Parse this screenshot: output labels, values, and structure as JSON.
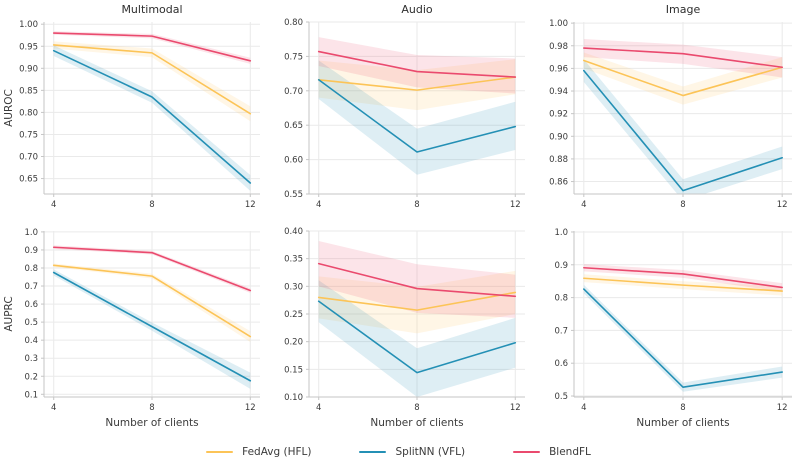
{
  "colors": {
    "fedavg": "#FCC457",
    "splitnn": "#2490B5",
    "blendfl": "#EA4A6E",
    "grid": "#EAEAEA",
    "spine": "#C6C6C6",
    "tick_text": "#3A3A3A",
    "title_text": "#2E2E2E",
    "band_opacity": 0.15
  },
  "legend": {
    "items": [
      {
        "label": "FedAvg (HFL)",
        "color_key": "fedavg"
      },
      {
        "label": "SplitNN (VFL)",
        "color_key": "splitnn"
      },
      {
        "label": "BlendFL",
        "color_key": "blendfl"
      }
    ]
  },
  "chart_data": [
    {
      "id": "multimodal-auroc",
      "type": "line",
      "title": "Multimodal",
      "ylabel": "AUROC",
      "xlabel": "",
      "x": [
        4,
        8,
        12
      ],
      "xtick_labels": [
        "4",
        "8",
        "12"
      ],
      "ylim": [
        0.615,
        1.005
      ],
      "ytick_labels": [
        "0.65",
        "0.70",
        "0.75",
        "0.80",
        "0.85",
        "0.90",
        "0.95",
        "1.00"
      ],
      "series": [
        {
          "name": "FedAvg (HFL)",
          "color_key": "fedavg",
          "values": [
            0.953,
            0.935,
            0.797
          ],
          "band_lo": [
            0.945,
            0.925,
            0.78
          ],
          "band_hi": [
            0.961,
            0.945,
            0.814
          ]
        },
        {
          "name": "SplitNN (VFL)",
          "color_key": "splitnn",
          "values": [
            0.94,
            0.835,
            0.64
          ],
          "band_lo": [
            0.928,
            0.822,
            0.622
          ],
          "band_hi": [
            0.952,
            0.848,
            0.658
          ]
        },
        {
          "name": "BlendFL",
          "color_key": "blendfl",
          "values": [
            0.98,
            0.973,
            0.917
          ],
          "band_lo": [
            0.976,
            0.968,
            0.91
          ],
          "band_hi": [
            0.984,
            0.978,
            0.924
          ]
        }
      ]
    },
    {
      "id": "audio-auroc",
      "type": "line",
      "title": "Audio",
      "ylabel": "",
      "xlabel": "",
      "x": [
        4,
        8,
        12
      ],
      "xtick_labels": [
        "4",
        "8",
        "12"
      ],
      "ylim": [
        0.55,
        0.8
      ],
      "ytick_labels": [
        "0.55",
        "0.60",
        "0.65",
        "0.70",
        "0.75",
        "0.80"
      ],
      "series": [
        {
          "name": "FedAvg (HFL)",
          "color_key": "fedavg",
          "values": [
            0.716,
            0.701,
            0.72
          ],
          "band_lo": [
            0.69,
            0.672,
            0.695
          ],
          "band_hi": [
            0.744,
            0.73,
            0.746
          ]
        },
        {
          "name": "SplitNN (VFL)",
          "color_key": "splitnn",
          "values": [
            0.716,
            0.611,
            0.648
          ],
          "band_lo": [
            0.688,
            0.578,
            0.614
          ],
          "band_hi": [
            0.744,
            0.645,
            0.684
          ]
        },
        {
          "name": "BlendFL",
          "color_key": "blendfl",
          "values": [
            0.757,
            0.728,
            0.72
          ],
          "band_lo": [
            0.736,
            0.705,
            0.696
          ],
          "band_hi": [
            0.778,
            0.752,
            0.747
          ]
        }
      ]
    },
    {
      "id": "image-auroc",
      "type": "line",
      "title": "Image",
      "ylabel": "",
      "xlabel": "",
      "x": [
        4,
        8,
        12
      ],
      "xtick_labels": [
        "4",
        "8",
        "12"
      ],
      "ylim": [
        0.849,
        1.001
      ],
      "ytick_labels": [
        "0.86",
        "0.88",
        "0.90",
        "0.92",
        "0.94",
        "0.96",
        "0.98",
        "1.00"
      ],
      "series": [
        {
          "name": "FedAvg (HFL)",
          "color_key": "fedavg",
          "values": [
            0.967,
            0.936,
            0.961
          ],
          "band_lo": [
            0.96,
            0.928,
            0.952
          ],
          "band_hi": [
            0.974,
            0.944,
            0.97
          ]
        },
        {
          "name": "SplitNN (VFL)",
          "color_key": "splitnn",
          "values": [
            0.958,
            0.852,
            0.881
          ],
          "band_lo": [
            0.948,
            0.843,
            0.871
          ],
          "band_hi": [
            0.968,
            0.862,
            0.891
          ]
        },
        {
          "name": "BlendFL",
          "color_key": "blendfl",
          "values": [
            0.978,
            0.973,
            0.961
          ],
          "band_lo": [
            0.97,
            0.964,
            0.952
          ],
          "band_hi": [
            0.986,
            0.981,
            0.97
          ]
        }
      ]
    },
    {
      "id": "multimodal-auprc",
      "type": "line",
      "title": "",
      "ylabel": "AUPRC",
      "xlabel": "Number of clients",
      "x": [
        4,
        8,
        12
      ],
      "xtick_labels": [
        "4",
        "8",
        "12"
      ],
      "ylim": [
        0.085,
        1.005
      ],
      "ytick_labels": [
        "0.1",
        "0.2",
        "0.3",
        "0.4",
        "0.5",
        "0.6",
        "0.7",
        "0.8",
        "0.9",
        "1.0"
      ],
      "series": [
        {
          "name": "FedAvg (HFL)",
          "color_key": "fedavg",
          "values": [
            0.815,
            0.755,
            0.42
          ],
          "band_lo": [
            0.805,
            0.742,
            0.39
          ],
          "band_hi": [
            0.825,
            0.768,
            0.45
          ]
        },
        {
          "name": "SplitNN (VFL)",
          "color_key": "splitnn",
          "values": [
            0.775,
            0.475,
            0.175
          ],
          "band_lo": [
            0.758,
            0.452,
            0.13
          ],
          "band_hi": [
            0.792,
            0.498,
            0.22
          ]
        },
        {
          "name": "BlendFL",
          "color_key": "blendfl",
          "values": [
            0.915,
            0.885,
            0.675
          ],
          "band_lo": [
            0.905,
            0.875,
            0.662
          ],
          "band_hi": [
            0.925,
            0.895,
            0.688
          ]
        }
      ]
    },
    {
      "id": "audio-auprc",
      "type": "line",
      "title": "",
      "ylabel": "",
      "xlabel": "Number of clients",
      "x": [
        4,
        8,
        12
      ],
      "xtick_labels": [
        "4",
        "8",
        "12"
      ],
      "ylim": [
        0.1,
        0.4
      ],
      "ytick_labels": [
        "0.10",
        "0.15",
        "0.20",
        "0.25",
        "0.30",
        "0.35",
        "0.40"
      ],
      "series": [
        {
          "name": "FedAvg (HFL)",
          "color_key": "fedavg",
          "values": [
            0.28,
            0.257,
            0.289
          ],
          "band_lo": [
            0.242,
            0.215,
            0.25
          ],
          "band_hi": [
            0.318,
            0.299,
            0.328
          ]
        },
        {
          "name": "SplitNN (VFL)",
          "color_key": "splitnn",
          "values": [
            0.273,
            0.144,
            0.198
          ],
          "band_lo": [
            0.235,
            0.1,
            0.153
          ],
          "band_hi": [
            0.311,
            0.188,
            0.243
          ]
        },
        {
          "name": "BlendFL",
          "color_key": "blendfl",
          "values": [
            0.341,
            0.296,
            0.282
          ],
          "band_lo": [
            0.3,
            0.252,
            0.243
          ],
          "band_hi": [
            0.382,
            0.34,
            0.321
          ]
        }
      ]
    },
    {
      "id": "image-auprc",
      "type": "line",
      "title": "",
      "ylabel": "",
      "xlabel": "Number of clients",
      "x": [
        4,
        8,
        12
      ],
      "xtick_labels": [
        "4",
        "8",
        "12"
      ],
      "ylim": [
        0.497,
        1.003
      ],
      "ytick_labels": [
        "0.5",
        "0.6",
        "0.7",
        "0.8",
        "0.9",
        "1.0"
      ],
      "series": [
        {
          "name": "FedAvg (HFL)",
          "color_key": "fedavg",
          "values": [
            0.859,
            0.838,
            0.82
          ],
          "band_lo": [
            0.847,
            0.826,
            0.806
          ],
          "band_hi": [
            0.871,
            0.85,
            0.834
          ]
        },
        {
          "name": "SplitNN (VFL)",
          "color_key": "splitnn",
          "values": [
            0.826,
            0.527,
            0.573
          ],
          "band_lo": [
            0.813,
            0.513,
            0.556
          ],
          "band_hi": [
            0.839,
            0.541,
            0.59
          ]
        },
        {
          "name": "BlendFL",
          "color_key": "blendfl",
          "values": [
            0.891,
            0.872,
            0.831
          ],
          "band_lo": [
            0.88,
            0.86,
            0.818
          ],
          "band_hi": [
            0.902,
            0.884,
            0.844
          ]
        }
      ]
    }
  ]
}
